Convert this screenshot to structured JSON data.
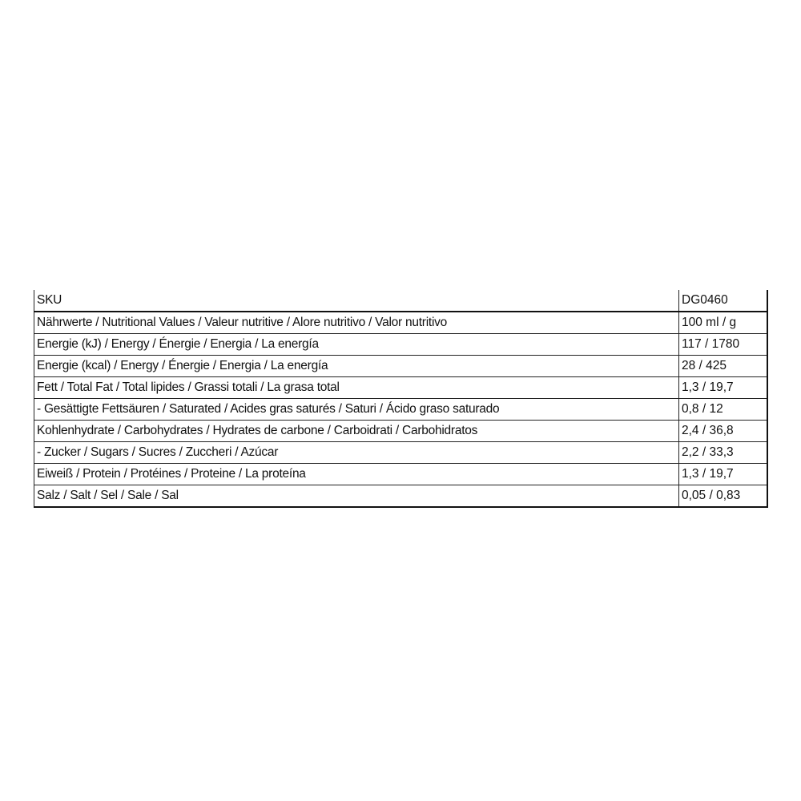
{
  "table": {
    "header": {
      "label": "SKU",
      "value": "DG0460"
    },
    "rows": [
      {
        "label": "Nährwerte / Nutritional Values / Valeur nutritive / Alore nutritivo / Valor nutritivo",
        "value": "100 ml / g"
      },
      {
        "label": "Energie (kJ) / Energy / Énergie / Energia / La energía",
        "value": "117 / 1780"
      },
      {
        "label": "Energie (kcal) / Energy / Énergie / Energia / La energía",
        "value": "28 / 425"
      },
      {
        "label": "Fett / Total Fat / Total lipides / Grassi totali / La grasa total",
        "value": "1,3 / 19,7"
      },
      {
        "label": "- Gesättigte Fettsäuren / Saturated / Acides gras saturés / Saturi / Ácido graso saturado",
        "value": "0,8 / 12"
      },
      {
        "label": "Kohlenhydrate / Carbohydrates / Hydrates de carbone / Carboidrati / Carbohidratos",
        "value": "2,4 / 36,8"
      },
      {
        "label": "- Zucker / Sugars / Sucres / Zuccheri / Azúcar",
        "value": "2,2 / 33,3"
      },
      {
        "label": "Eiweiß / Protein / Protéines / Proteine / La proteína",
        "value": "1,3 / 19,7"
      },
      {
        "label": "Salz / Salt / Sel / Sale / Sal",
        "value": "0,05 / 0,83"
      }
    ]
  }
}
